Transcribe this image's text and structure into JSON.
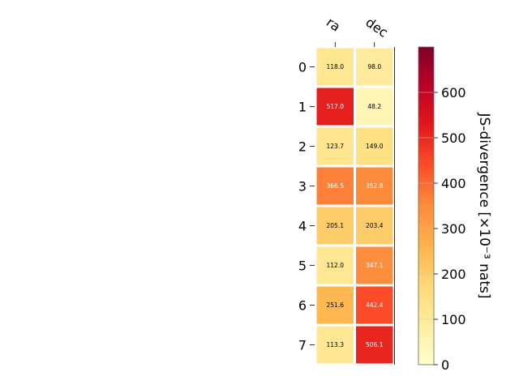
{
  "chart_data": {
    "type": "heatmap",
    "columns": [
      "ra",
      "dec"
    ],
    "rows": [
      "0",
      "1",
      "2",
      "3",
      "4",
      "5",
      "6",
      "7"
    ],
    "values": [
      [
        118.0,
        98.0
      ],
      [
        517.0,
        48.2
      ],
      [
        123.7,
        149.0
      ],
      [
        366.5,
        352.8
      ],
      [
        205.1,
        203.4
      ],
      [
        112.0,
        347.1
      ],
      [
        251.6,
        442.4
      ],
      [
        113.3,
        506.1
      ]
    ],
    "cell_labels": [
      [
        "118.0",
        "98.0"
      ],
      [
        "517.0",
        "48.2"
      ],
      [
        "123.7",
        "149.0"
      ],
      [
        "366.5",
        "352.8"
      ],
      [
        "205.1",
        "203.4"
      ],
      [
        "112.0",
        "347.1"
      ],
      [
        "251.6",
        "442.4"
      ],
      [
        "113.3",
        "506.1"
      ]
    ],
    "colorbar": {
      "label": "JS-divergence [×10⁻³ nats]",
      "range": [
        0,
        700
      ],
      "ticks": [
        "0",
        "100",
        "200",
        "300",
        "400",
        "500",
        "600"
      ],
      "tick_values": [
        0,
        100,
        200,
        300,
        400,
        500,
        600
      ],
      "colormap": "YlOrRd"
    }
  }
}
